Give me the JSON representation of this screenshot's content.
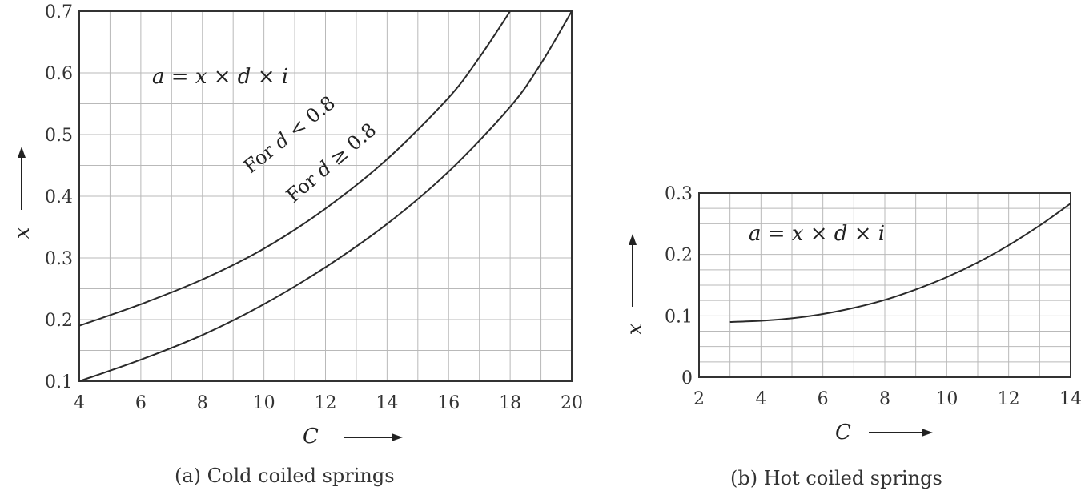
{
  "chart_data": [
    {
      "type": "line",
      "caption": "(a) Cold coiled springs",
      "formula": "a = x × d × i",
      "xlabel": "C",
      "ylabel": "x",
      "xlim": [
        4,
        20
      ],
      "ylim": [
        0.1,
        0.7
      ],
      "xticks": [
        4,
        6,
        8,
        10,
        12,
        14,
        16,
        18,
        20
      ],
      "yticks": [
        "0.1",
        "0.2",
        "0.3",
        "0.4",
        "0.5",
        "0.6",
        "0.7"
      ],
      "grid": true,
      "series": [
        {
          "name": "For d < 0.8",
          "x": [
            4,
            6,
            8,
            10,
            12,
            14,
            16,
            17,
            18
          ],
          "y": [
            0.19,
            0.225,
            0.265,
            0.315,
            0.38,
            0.46,
            0.56,
            0.625,
            0.7
          ]
        },
        {
          "name": "For d ≥ 0.8",
          "x": [
            4,
            6,
            8,
            10,
            12,
            14,
            16,
            18,
            19,
            20
          ],
          "y": [
            0.1,
            0.135,
            0.175,
            0.225,
            0.285,
            0.355,
            0.44,
            0.545,
            0.615,
            0.7
          ]
        }
      ]
    },
    {
      "type": "line",
      "caption": "(b) Hot coiled springs",
      "formula": "a = x × d × i",
      "xlabel": "C",
      "ylabel": "x",
      "xlim": [
        2,
        14
      ],
      "ylim": [
        0,
        0.3
      ],
      "xticks": [
        2,
        4,
        6,
        8,
        10,
        12,
        14
      ],
      "yticks": [
        "0",
        "0.1",
        "0.2",
        "0.3"
      ],
      "grid": true,
      "series": [
        {
          "x": [
            3,
            4,
            5,
            6,
            7,
            8,
            9,
            10,
            11,
            12,
            13,
            14
          ],
          "y": [
            0.09,
            0.092,
            0.096,
            0.103,
            0.113,
            0.126,
            0.143,
            0.163,
            0.187,
            0.215,
            0.247,
            0.283
          ]
        }
      ]
    }
  ]
}
